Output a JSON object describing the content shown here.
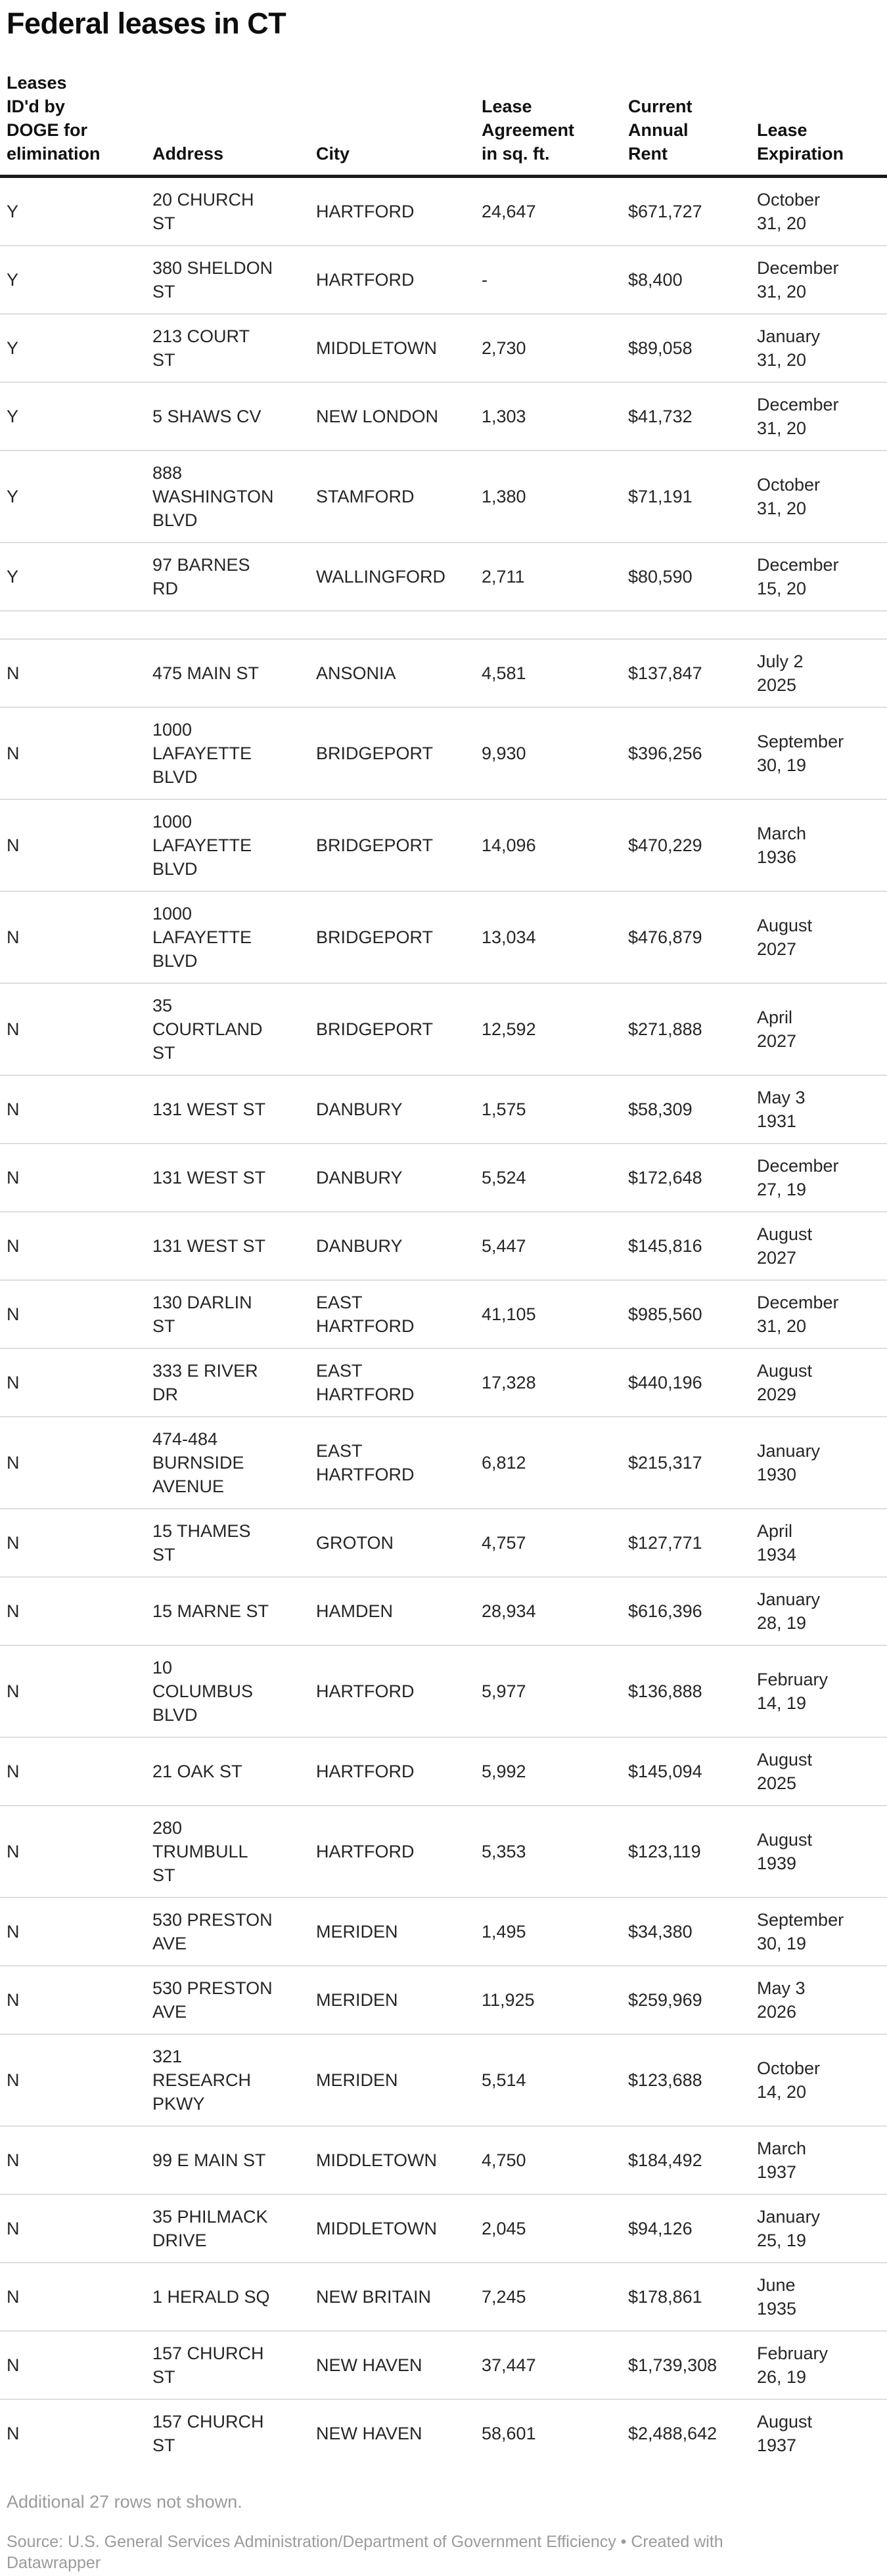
{
  "title": "Federal leases in CT",
  "colors": {
    "header_rule": "#191919",
    "row_separator": "#dedede",
    "body_text": "#262626",
    "muted_text": "#9b9b9b"
  },
  "table": {
    "columns": [
      {
        "id": "elimination",
        "label_lines": [
          "Leases",
          "ID'd by",
          "DOGE for",
          "elimination"
        ]
      },
      {
        "id": "address",
        "label_lines": [
          "Address"
        ]
      },
      {
        "id": "city",
        "label_lines": [
          "City"
        ]
      },
      {
        "id": "sqft",
        "label_lines": [
          "Lease",
          "Agreement",
          "in sq. ft."
        ]
      },
      {
        "id": "rent",
        "label_lines": [
          "Current",
          "Annual",
          "Rent"
        ]
      },
      {
        "id": "expiration",
        "label_lines": [
          "Lease",
          "Expiration"
        ]
      }
    ],
    "rows": [
      {
        "elimination": "Y",
        "address_lines": [
          "20 CHURCH",
          "ST"
        ],
        "city_lines": [
          "HARTFORD"
        ],
        "sqft": "24,647",
        "rent": "$671,727",
        "expiration_lines": [
          "October",
          "31, 20"
        ]
      },
      {
        "elimination": "Y",
        "address_lines": [
          "380 SHELDON",
          "ST"
        ],
        "city_lines": [
          "HARTFORD"
        ],
        "sqft": "-",
        "rent": "$8,400",
        "expiration_lines": [
          "December",
          "31, 20"
        ]
      },
      {
        "elimination": "Y",
        "address_lines": [
          "213 COURT",
          "ST"
        ],
        "city_lines": [
          "MIDDLETOWN"
        ],
        "sqft": "2,730",
        "rent": "$89,058",
        "expiration_lines": [
          "January",
          "31, 20"
        ]
      },
      {
        "elimination": "Y",
        "address_lines": [
          "5 SHAWS CV"
        ],
        "city_lines": [
          "NEW LONDON"
        ],
        "sqft": "1,303",
        "rent": "$41,732",
        "expiration_lines": [
          "December",
          "31, 20"
        ]
      },
      {
        "elimination": "Y",
        "address_lines": [
          "888",
          "WASHINGTON",
          "BLVD"
        ],
        "city_lines": [
          "STAMFORD"
        ],
        "sqft": "1,380",
        "rent": "$71,191",
        "expiration_lines": [
          "October",
          "31, 20"
        ]
      },
      {
        "elimination": "Y",
        "address_lines": [
          "97 BARNES",
          "RD"
        ],
        "city_lines": [
          "WALLINGFORD"
        ],
        "sqft": "2,711",
        "rent": "$80,590",
        "expiration_lines": [
          "December",
          "15, 20"
        ]
      },
      {
        "spacer": true
      },
      {
        "elimination": "N",
        "address_lines": [
          "475 MAIN ST"
        ],
        "city_lines": [
          "ANSONIA"
        ],
        "sqft": "4,581",
        "rent": "$137,847",
        "expiration_lines": [
          "July 2",
          "2025"
        ]
      },
      {
        "elimination": "N",
        "address_lines": [
          "1000",
          "LAFAYETTE",
          "BLVD"
        ],
        "city_lines": [
          "BRIDGEPORT"
        ],
        "sqft": "9,930",
        "rent": "$396,256",
        "expiration_lines": [
          "September",
          "30, 19"
        ]
      },
      {
        "elimination": "N",
        "address_lines": [
          "1000",
          "LAFAYETTE",
          "BLVD"
        ],
        "city_lines": [
          "BRIDGEPORT"
        ],
        "sqft": "14,096",
        "rent": "$470,229",
        "expiration_lines": [
          "March",
          "1936"
        ]
      },
      {
        "elimination": "N",
        "address_lines": [
          "1000",
          "LAFAYETTE",
          "BLVD"
        ],
        "city_lines": [
          "BRIDGEPORT"
        ],
        "sqft": "13,034",
        "rent": "$476,879",
        "expiration_lines": [
          "August",
          "2027"
        ]
      },
      {
        "elimination": "N",
        "address_lines": [
          "35",
          "COURTLAND",
          "ST"
        ],
        "city_lines": [
          "BRIDGEPORT"
        ],
        "sqft": "12,592",
        "rent": "$271,888",
        "expiration_lines": [
          "April",
          "2027"
        ]
      },
      {
        "elimination": "N",
        "address_lines": [
          "131 WEST ST"
        ],
        "city_lines": [
          "DANBURY"
        ],
        "sqft": "1,575",
        "rent": "$58,309",
        "expiration_lines": [
          "May 3",
          "1931"
        ]
      },
      {
        "elimination": "N",
        "address_lines": [
          "131 WEST ST"
        ],
        "city_lines": [
          "DANBURY"
        ],
        "sqft": "5,524",
        "rent": "$172,648",
        "expiration_lines": [
          "December",
          "27, 19"
        ]
      },
      {
        "elimination": "N",
        "address_lines": [
          "131 WEST ST"
        ],
        "city_lines": [
          "DANBURY"
        ],
        "sqft": "5,447",
        "rent": "$145,816",
        "expiration_lines": [
          "August",
          "2027"
        ]
      },
      {
        "elimination": "N",
        "address_lines": [
          "130 DARLIN",
          "ST"
        ],
        "city_lines": [
          "EAST",
          "HARTFORD"
        ],
        "sqft": "41,105",
        "rent": "$985,560",
        "expiration_lines": [
          "December",
          "31, 20"
        ]
      },
      {
        "elimination": "N",
        "address_lines": [
          "333 E RIVER",
          "DR"
        ],
        "city_lines": [
          "EAST",
          "HARTFORD"
        ],
        "sqft": "17,328",
        "rent": "$440,196",
        "expiration_lines": [
          "August",
          "2029"
        ]
      },
      {
        "elimination": "N",
        "address_lines": [
          "474-484",
          "BURNSIDE",
          "AVENUE"
        ],
        "city_lines": [
          "EAST",
          "HARTFORD"
        ],
        "sqft": "6,812",
        "rent": "$215,317",
        "expiration_lines": [
          "January",
          "1930"
        ]
      },
      {
        "elimination": "N",
        "address_lines": [
          "15 THAMES",
          "ST"
        ],
        "city_lines": [
          "GROTON"
        ],
        "sqft": "4,757",
        "rent": "$127,771",
        "expiration_lines": [
          "April",
          "1934"
        ]
      },
      {
        "elimination": "N",
        "address_lines": [
          "15 MARNE ST"
        ],
        "city_lines": [
          "HAMDEN"
        ],
        "sqft": "28,934",
        "rent": "$616,396",
        "expiration_lines": [
          "January",
          "28, 19"
        ]
      },
      {
        "elimination": "N",
        "address_lines": [
          "10",
          "COLUMBUS",
          "BLVD"
        ],
        "city_lines": [
          "HARTFORD"
        ],
        "sqft": "5,977",
        "rent": "$136,888",
        "expiration_lines": [
          "February",
          "14, 19"
        ]
      },
      {
        "elimination": "N",
        "address_lines": [
          "21 OAK ST"
        ],
        "city_lines": [
          "HARTFORD"
        ],
        "sqft": "5,992",
        "rent": "$145,094",
        "expiration_lines": [
          "August",
          "2025"
        ]
      },
      {
        "elimination": "N",
        "address_lines": [
          "280",
          "TRUMBULL",
          "ST"
        ],
        "city_lines": [
          "HARTFORD"
        ],
        "sqft": "5,353",
        "rent": "$123,119",
        "expiration_lines": [
          "August",
          "1939"
        ]
      },
      {
        "elimination": "N",
        "address_lines": [
          "530 PRESTON",
          "AVE"
        ],
        "city_lines": [
          "MERIDEN"
        ],
        "sqft": "1,495",
        "rent": "$34,380",
        "expiration_lines": [
          "September",
          "30, 19"
        ]
      },
      {
        "elimination": "N",
        "address_lines": [
          "530 PRESTON",
          "AVE"
        ],
        "city_lines": [
          "MERIDEN"
        ],
        "sqft": "11,925",
        "rent": "$259,969",
        "expiration_lines": [
          "May 3",
          "2026"
        ]
      },
      {
        "elimination": "N",
        "address_lines": [
          "321",
          "RESEARCH",
          "PKWY"
        ],
        "city_lines": [
          "MERIDEN"
        ],
        "sqft": "5,514",
        "rent": "$123,688",
        "expiration_lines": [
          "October",
          "14, 20"
        ]
      },
      {
        "elimination": "N",
        "address_lines": [
          "99 E MAIN ST"
        ],
        "city_lines": [
          "MIDDLETOWN"
        ],
        "sqft": "4,750",
        "rent": "$184,492",
        "expiration_lines": [
          "March",
          "1937"
        ]
      },
      {
        "elimination": "N",
        "address_lines": [
          "35 PHILMACK",
          "DRIVE"
        ],
        "city_lines": [
          "MIDDLETOWN"
        ],
        "sqft": "2,045",
        "rent": "$94,126",
        "expiration_lines": [
          "January",
          "25, 19"
        ]
      },
      {
        "elimination": "N",
        "address_lines": [
          "1 HERALD SQ"
        ],
        "city_lines": [
          "NEW BRITAIN"
        ],
        "sqft": "7,245",
        "rent": "$178,861",
        "expiration_lines": [
          "June",
          "1935"
        ]
      },
      {
        "elimination": "N",
        "address_lines": [
          "157 CHURCH",
          "ST"
        ],
        "city_lines": [
          "NEW HAVEN"
        ],
        "sqft": "37,447",
        "rent": "$1,739,308",
        "expiration_lines": [
          "February",
          "26, 19"
        ]
      },
      {
        "elimination": "N",
        "address_lines": [
          "157 CHURCH",
          "ST"
        ],
        "city_lines": [
          "NEW HAVEN"
        ],
        "sqft": "58,601",
        "rent": "$2,488,642",
        "expiration_lines": [
          "August",
          "1937"
        ]
      }
    ]
  },
  "footer": {
    "note": "Additional 27 rows not shown.",
    "source": "Source: U.S. General Services Administration/Department of Government Efficiency • Created with Datawrapper"
  }
}
